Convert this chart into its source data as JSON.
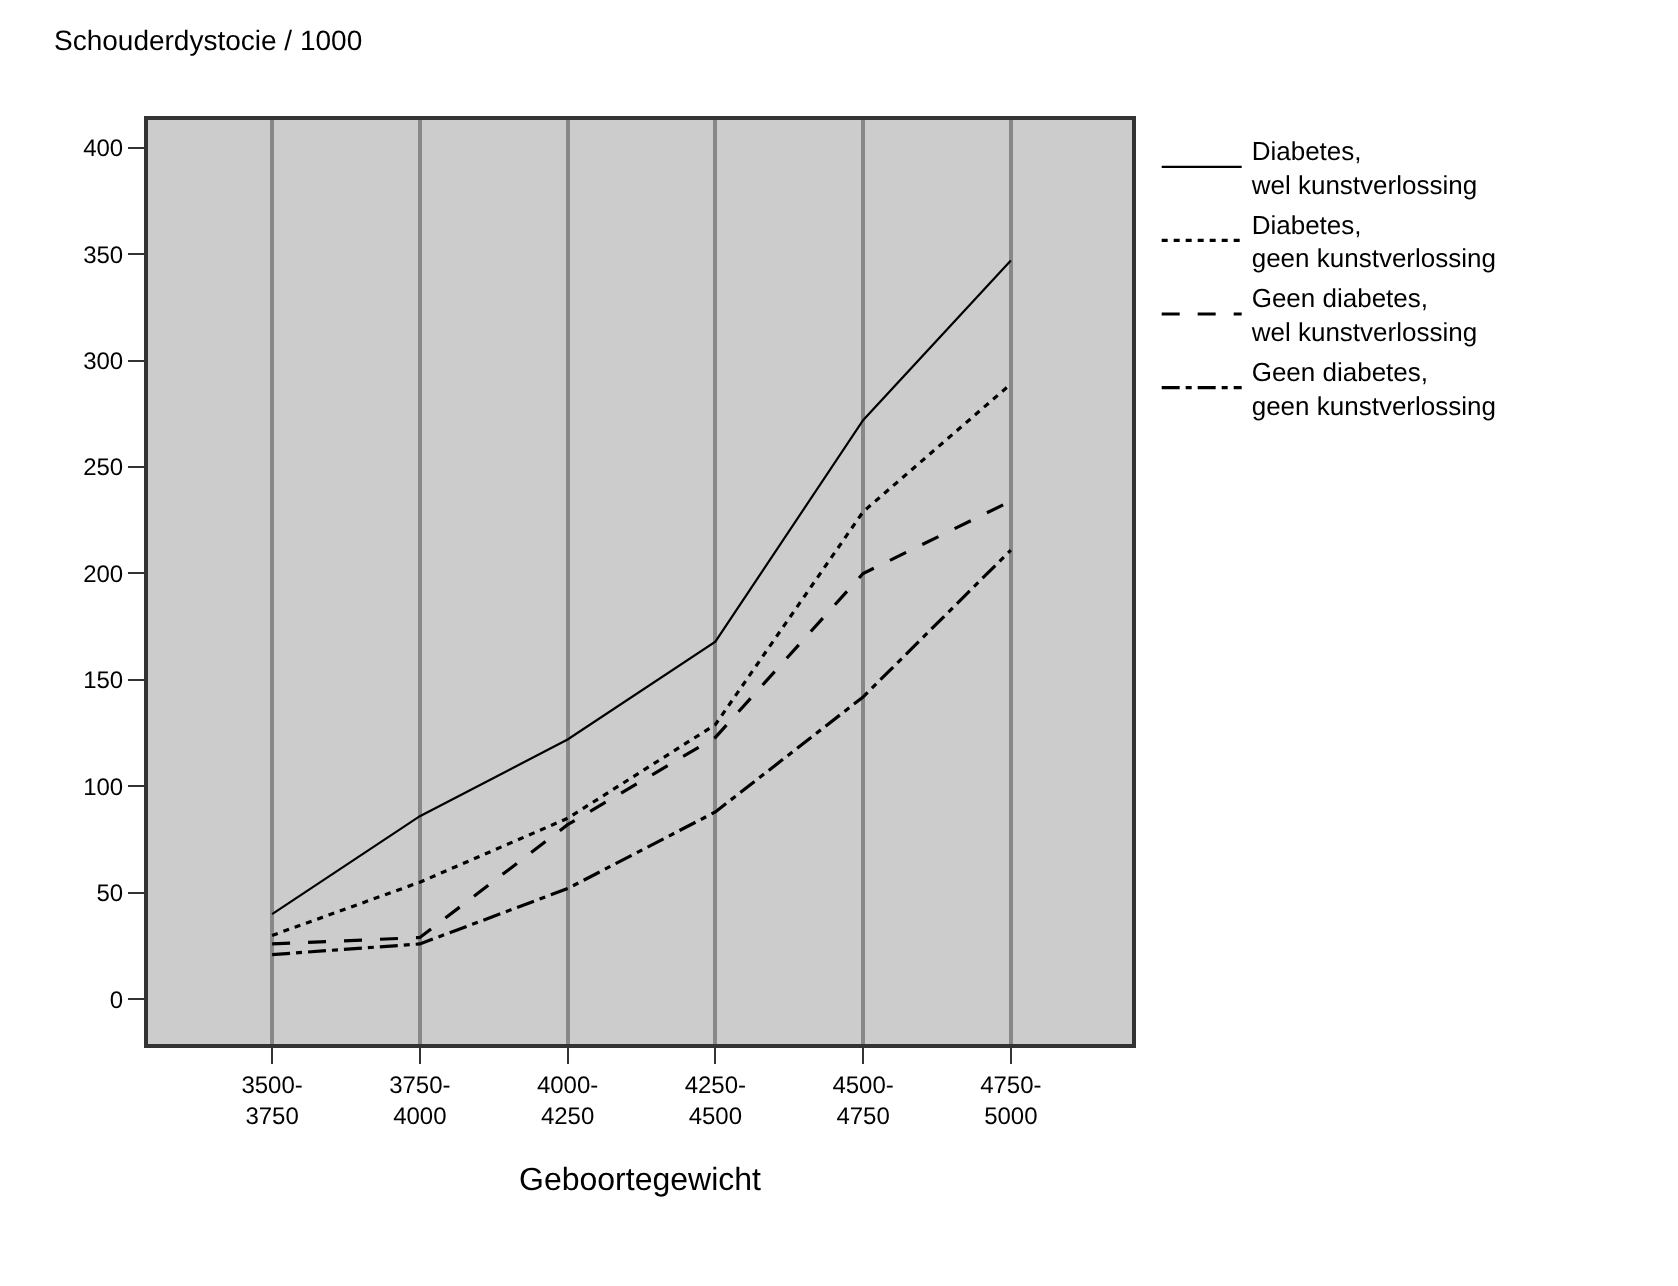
{
  "chart_data": {
    "type": "line",
    "ylabel": "Schouderdystocie / 1000",
    "xlabel": "Geboortegewicht",
    "categories": [
      "3500-3750",
      "3750-4000",
      "4000-4250",
      "4250-4500",
      "4500-4750",
      "4750-5000"
    ],
    "series": [
      {
        "name": "Diabetes, wel kunstverlossing",
        "color": "#000000",
        "line_style": "solid",
        "values": [
          40,
          86,
          122,
          168,
          272,
          347
        ]
      },
      {
        "name": "Diabetes, geen kunstverlossing",
        "color": "#000000",
        "line_style": "dotted",
        "values": [
          30,
          55,
          85,
          129,
          229,
          289
        ]
      },
      {
        "name": "Geen diabetes, wel kunstverlossing",
        "color": "#000000",
        "line_style": "dashed",
        "values": [
          26,
          29,
          82,
          123,
          200,
          234
        ]
      },
      {
        "name": "Geen diabetes, geen kunstverlossing",
        "color": "#000000",
        "line_style": "dashdot",
        "values": [
          21,
          26,
          52,
          88,
          142,
          211
        ]
      }
    ],
    "ylim": [
      -21,
      413
    ],
    "yticks": [
      0,
      50,
      100,
      150,
      200,
      250,
      300,
      350,
      400
    ],
    "grid": "x",
    "legend": "right",
    "marker": "none"
  }
}
